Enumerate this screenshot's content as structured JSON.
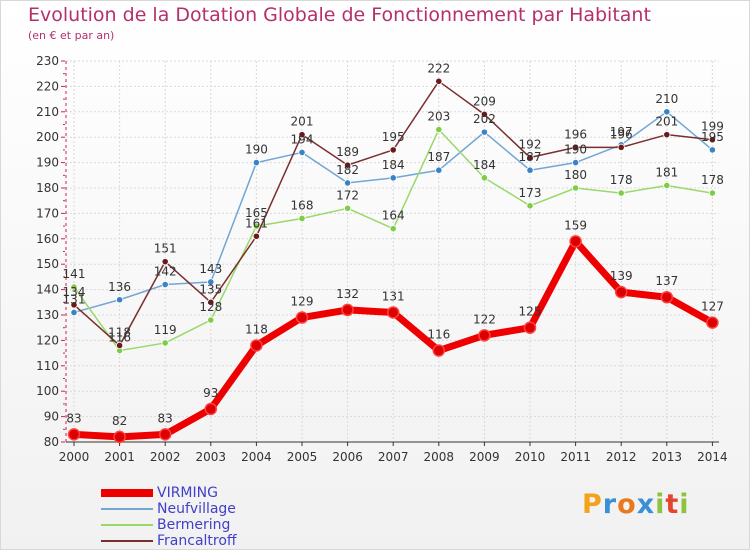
{
  "chart_data": {
    "type": "line",
    "title": "Evolution de la Dotation Globale de Fonctionnement par Habitant",
    "subtitle": "(en € et par an)",
    "x": [
      "2000",
      "2001",
      "2002",
      "2003",
      "2004",
      "2005",
      "2006",
      "2007",
      "2008",
      "2009",
      "2010",
      "2011",
      "2012",
      "2013",
      "2014"
    ],
    "ylim": [
      80,
      230
    ],
    "yticks": [
      80,
      90,
      100,
      110,
      120,
      130,
      140,
      150,
      160,
      170,
      180,
      190,
      200,
      210,
      220,
      230
    ],
    "grid": true,
    "legend_position": "bottom-left",
    "series": [
      {
        "name": "VIRMING",
        "color": "#ee0000",
        "marker": "#dd0000",
        "values": [
          83,
          82,
          83,
          93,
          118,
          129,
          132,
          131,
          116,
          122,
          125,
          159,
          139,
          137,
          127
        ]
      },
      {
        "name": "Neufvillage",
        "color": "#72a6d4",
        "marker": "#3a84c6",
        "values": [
          131,
          136,
          142,
          143,
          190,
          194,
          182,
          184,
          187,
          202,
          187,
          190,
          197,
          210,
          195
        ]
      },
      {
        "name": "Bermering",
        "color": "#9ad86a",
        "marker": "#80cc46",
        "values": [
          141,
          116,
          119,
          128,
          165,
          168,
          172,
          164,
          203,
          184,
          173,
          180,
          178,
          181,
          178
        ]
      },
      {
        "name": "Francaltroff",
        "color": "#7a2f2f",
        "marker": "#6a1a1a",
        "values": [
          134,
          118,
          151,
          135,
          161,
          201,
          189,
          195,
          222,
          209,
          192,
          196,
          196,
          201,
          199
        ]
      }
    ]
  },
  "logo": {
    "letters": [
      {
        "ch": "P",
        "color": "#f2a21b"
      },
      {
        "ch": "r",
        "color": "#3a8fd6"
      },
      {
        "ch": "o",
        "color": "#e9791e"
      },
      {
        "ch": "x",
        "color": "#3a8fd6"
      },
      {
        "ch": "i",
        "color": "#8cc43f"
      },
      {
        "ch": "t",
        "color": "#e5452e"
      },
      {
        "ch": "i",
        "color": "#8cc43f"
      }
    ]
  }
}
